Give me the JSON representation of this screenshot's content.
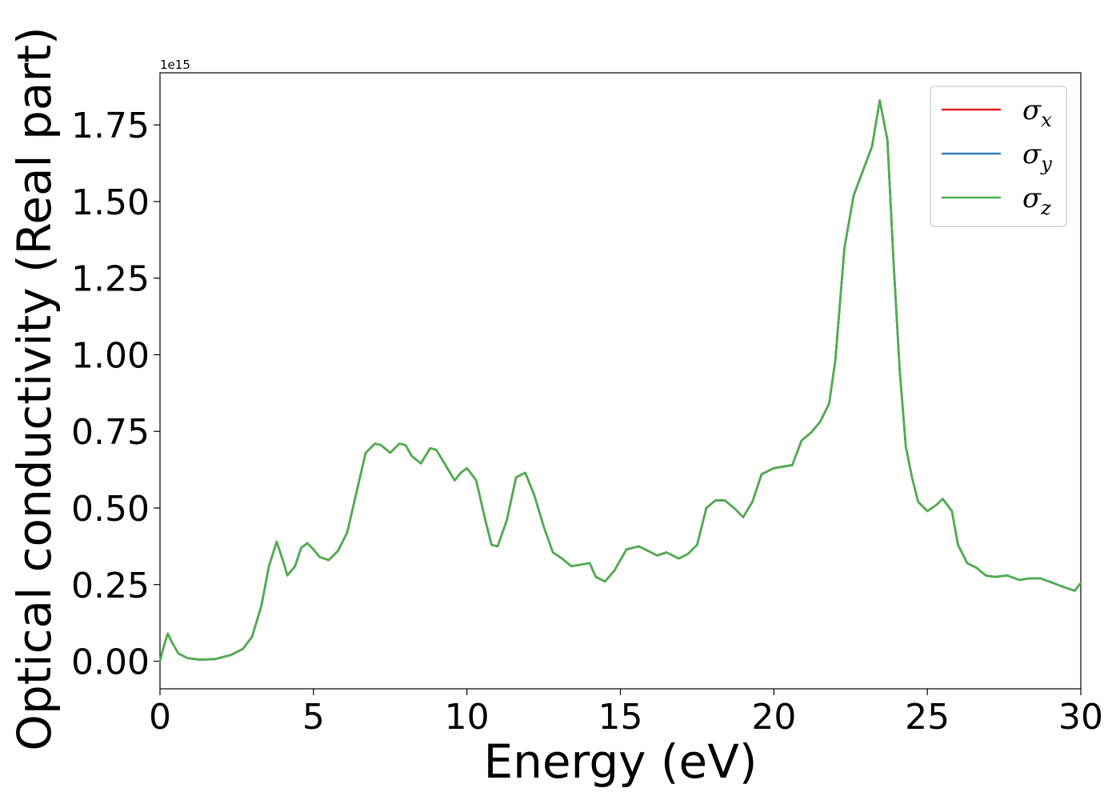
{
  "chart_data": {
    "type": "line",
    "title": "",
    "xlabel": "Energy (eV)",
    "ylabel": "Optical conductivity (Real part)",
    "y_offset_label": "1e15",
    "y_scale": 1000000000000000.0,
    "xlim": [
      0,
      30
    ],
    "ylim": [
      -0.09,
      1.92
    ],
    "x_ticks": [
      0,
      5,
      10,
      15,
      20,
      25,
      30
    ],
    "x_tick_labels": [
      "0",
      "5",
      "10",
      "15",
      "20",
      "25",
      "30"
    ],
    "y_ticks": [
      0.0,
      0.25,
      0.5,
      0.75,
      1.0,
      1.25,
      1.5,
      1.75
    ],
    "y_tick_labels": [
      "0.00",
      "0.25",
      "0.50",
      "0.75",
      "1.00",
      "1.25",
      "1.50",
      "1.75"
    ],
    "grid": false,
    "legend_position": "top-right",
    "x": [
      0.0,
      0.1,
      0.25,
      0.4,
      0.6,
      0.9,
      1.3,
      1.8,
      2.3,
      2.7,
      3.0,
      3.3,
      3.55,
      3.8,
      4.0,
      4.15,
      4.4,
      4.6,
      4.8,
      5.0,
      5.2,
      5.5,
      5.8,
      6.1,
      6.4,
      6.7,
      7.0,
      7.2,
      7.5,
      7.8,
      8.0,
      8.2,
      8.5,
      8.8,
      9.0,
      9.3,
      9.6,
      9.8,
      10.0,
      10.3,
      10.6,
      10.8,
      11.0,
      11.3,
      11.6,
      11.9,
      12.2,
      12.5,
      12.8,
      13.1,
      13.4,
      13.7,
      14.0,
      14.2,
      14.5,
      14.8,
      15.2,
      15.6,
      15.9,
      16.2,
      16.5,
      16.9,
      17.2,
      17.5,
      17.8,
      18.1,
      18.4,
      18.7,
      19.0,
      19.3,
      19.6,
      20.0,
      20.3,
      20.6,
      20.9,
      21.2,
      21.5,
      21.8,
      22.0,
      22.3,
      22.6,
      22.9,
      23.2,
      23.45,
      23.7,
      23.9,
      24.1,
      24.3,
      24.5,
      24.7,
      25.0,
      25.3,
      25.5,
      25.8,
      26.0,
      26.3,
      26.6,
      26.9,
      27.2,
      27.6,
      28.0,
      28.3,
      28.7,
      29.1,
      29.5,
      29.8,
      30.0
    ],
    "series": [
      {
        "name": "σx",
        "base": "σ",
        "sub": "x",
        "color": "#e41a1c",
        "values": [
          0.0,
          0.04,
          0.09,
          0.06,
          0.025,
          0.01,
          0.005,
          0.007,
          0.02,
          0.04,
          0.08,
          0.18,
          0.31,
          0.39,
          0.33,
          0.28,
          0.31,
          0.37,
          0.385,
          0.365,
          0.34,
          0.33,
          0.36,
          0.42,
          0.55,
          0.68,
          0.71,
          0.705,
          0.68,
          0.71,
          0.705,
          0.67,
          0.645,
          0.695,
          0.69,
          0.64,
          0.59,
          0.615,
          0.63,
          0.59,
          0.46,
          0.38,
          0.375,
          0.46,
          0.6,
          0.615,
          0.54,
          0.44,
          0.355,
          0.335,
          0.31,
          0.315,
          0.32,
          0.275,
          0.26,
          0.295,
          0.365,
          0.375,
          0.36,
          0.345,
          0.355,
          0.335,
          0.35,
          0.38,
          0.5,
          0.525,
          0.525,
          0.5,
          0.47,
          0.52,
          0.61,
          0.63,
          0.635,
          0.64,
          0.72,
          0.745,
          0.78,
          0.84,
          0.98,
          1.35,
          1.52,
          1.6,
          1.68,
          1.83,
          1.7,
          1.3,
          0.95,
          0.7,
          0.6,
          0.52,
          0.49,
          0.51,
          0.53,
          0.49,
          0.38,
          0.32,
          0.305,
          0.28,
          0.275,
          0.28,
          0.265,
          0.27,
          0.27,
          0.255,
          0.24,
          0.23,
          0.255
        ]
      },
      {
        "name": "σy",
        "base": "σ",
        "sub": "y",
        "color": "#377eb8",
        "values": [
          0.0,
          0.04,
          0.09,
          0.06,
          0.025,
          0.01,
          0.005,
          0.007,
          0.02,
          0.04,
          0.08,
          0.18,
          0.31,
          0.39,
          0.33,
          0.28,
          0.31,
          0.37,
          0.385,
          0.365,
          0.34,
          0.33,
          0.36,
          0.42,
          0.55,
          0.68,
          0.71,
          0.705,
          0.68,
          0.71,
          0.705,
          0.67,
          0.645,
          0.695,
          0.69,
          0.64,
          0.59,
          0.615,
          0.63,
          0.59,
          0.46,
          0.38,
          0.375,
          0.46,
          0.6,
          0.615,
          0.54,
          0.44,
          0.355,
          0.335,
          0.31,
          0.315,
          0.32,
          0.275,
          0.26,
          0.295,
          0.365,
          0.375,
          0.36,
          0.345,
          0.355,
          0.335,
          0.35,
          0.38,
          0.5,
          0.525,
          0.525,
          0.5,
          0.47,
          0.52,
          0.61,
          0.63,
          0.635,
          0.64,
          0.72,
          0.745,
          0.78,
          0.84,
          0.98,
          1.35,
          1.52,
          1.6,
          1.68,
          1.83,
          1.7,
          1.3,
          0.95,
          0.7,
          0.6,
          0.52,
          0.49,
          0.51,
          0.53,
          0.49,
          0.38,
          0.32,
          0.305,
          0.28,
          0.275,
          0.28,
          0.265,
          0.27,
          0.27,
          0.255,
          0.24,
          0.23,
          0.255
        ]
      },
      {
        "name": "σz",
        "base": "σ",
        "sub": "z",
        "color": "#4daf4a",
        "values": [
          0.0,
          0.04,
          0.09,
          0.06,
          0.025,
          0.01,
          0.005,
          0.007,
          0.02,
          0.04,
          0.08,
          0.18,
          0.31,
          0.39,
          0.33,
          0.28,
          0.31,
          0.37,
          0.385,
          0.365,
          0.34,
          0.33,
          0.36,
          0.42,
          0.55,
          0.68,
          0.71,
          0.705,
          0.68,
          0.71,
          0.705,
          0.67,
          0.645,
          0.695,
          0.69,
          0.64,
          0.59,
          0.615,
          0.63,
          0.59,
          0.46,
          0.38,
          0.375,
          0.46,
          0.6,
          0.615,
          0.54,
          0.44,
          0.355,
          0.335,
          0.31,
          0.315,
          0.32,
          0.275,
          0.26,
          0.295,
          0.365,
          0.375,
          0.36,
          0.345,
          0.355,
          0.335,
          0.35,
          0.38,
          0.5,
          0.525,
          0.525,
          0.5,
          0.47,
          0.52,
          0.61,
          0.63,
          0.635,
          0.64,
          0.72,
          0.745,
          0.78,
          0.84,
          0.98,
          1.35,
          1.52,
          1.6,
          1.68,
          1.83,
          1.7,
          1.3,
          0.95,
          0.7,
          0.6,
          0.52,
          0.49,
          0.51,
          0.53,
          0.49,
          0.38,
          0.32,
          0.305,
          0.28,
          0.275,
          0.28,
          0.265,
          0.27,
          0.27,
          0.255,
          0.24,
          0.23,
          0.255
        ]
      }
    ]
  }
}
